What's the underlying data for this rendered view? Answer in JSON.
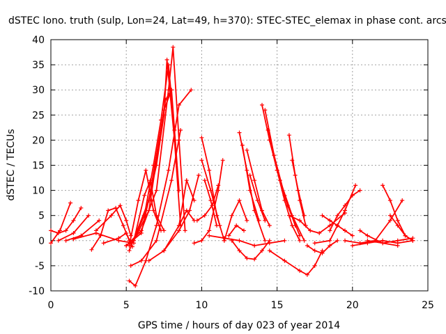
{
  "chart_data": {
    "type": "scatter",
    "title": "dSTEC Iono. truth (sulp, Lon=24, Lat=49, h=370): STEC-STEC_elemax in phase cont. arcs",
    "xlabel": "GPS time / hours of day 023 of year 2014",
    "ylabel": "dSTEC  / TECUs",
    "xlim": [
      0,
      25
    ],
    "ylim": [
      -10,
      40
    ],
    "xticks": [
      "0",
      "5",
      "10",
      "15",
      "20",
      "25"
    ],
    "yticks": [
      "-10",
      "-5",
      "0",
      "5",
      "10",
      "15",
      "20",
      "25",
      "30",
      "35",
      "40"
    ],
    "grid": true,
    "marker": "plus",
    "color": "#ff0000",
    "series": [
      {
        "x": [
          0,
          0.6,
          1.3
        ],
        "y": [
          -0.5,
          2,
          7.5
        ]
      },
      {
        "x": [
          0,
          0.5,
          1.0,
          1.5,
          2.0
        ],
        "y": [
          2,
          1.5,
          2,
          4,
          6.5
        ]
      },
      {
        "x": [
          0.5,
          1.5,
          2.5
        ],
        "y": [
          0,
          1.5,
          5
        ]
      },
      {
        "x": [
          1.0,
          2.0,
          3.2
        ],
        "y": [
          0,
          1,
          4
        ]
      },
      {
        "x": [
          2.7,
          3.3,
          3.8,
          4.3,
          4.8,
          5.2
        ],
        "y": [
          -1.8,
          1,
          6,
          6.5,
          3,
          0
        ]
      },
      {
        "x": [
          3.0,
          4.0,
          4.6,
          5.0,
          5.3
        ],
        "y": [
          2,
          5,
          7,
          4,
          1
        ]
      },
      {
        "x": [
          1.5,
          3.0,
          4.5,
          5.5
        ],
        "y": [
          0.3,
          1.5,
          0,
          -0.5
        ]
      },
      {
        "x": [
          3.5,
          4.5,
          5.0,
          5.4
        ],
        "y": [
          -0.5,
          0.5,
          1.5,
          -1.2
        ]
      },
      {
        "x": [
          5.0,
          6.0,
          7.0,
          7.8,
          8.1,
          8.5,
          8.9
        ],
        "y": [
          -1,
          2,
          10,
          30,
          38.5,
          20,
          2
        ]
      },
      {
        "x": [
          5.0,
          6.0,
          7.0,
          7.5,
          7.7,
          8.2,
          8.6
        ],
        "y": [
          -1,
          1.5,
          15,
          25,
          36,
          20,
          3
        ]
      },
      {
        "x": [
          5.2,
          6.5,
          7.5,
          8.0,
          8.5
        ],
        "y": [
          -2,
          8,
          26,
          30,
          10
        ]
      },
      {
        "x": [
          5.3,
          6.2,
          6.8,
          7.3,
          7.8,
          8.2
        ],
        "y": [
          -1,
          5,
          15,
          24,
          35,
          22
        ]
      },
      {
        "x": [
          5.5,
          6.5,
          7.2,
          7.6,
          8.0
        ],
        "y": [
          0,
          6,
          20,
          28,
          30
        ]
      },
      {
        "x": [
          5.2,
          5.8,
          6.3,
          6.8,
          7.3
        ],
        "y": [
          -1,
          8,
          14,
          6,
          2
        ]
      },
      {
        "x": [
          5.5,
          6.2,
          6.6,
          7.0,
          7.5
        ],
        "y": [
          0,
          9,
          12,
          5,
          2
        ]
      },
      {
        "x": [
          5.2,
          5.6,
          6.3,
          7.0,
          7.8,
          8.5,
          9.3
        ],
        "y": [
          -8,
          -9,
          -4,
          3,
          14,
          27,
          30
        ]
      },
      {
        "x": [
          5.3,
          6.0,
          7.0,
          8.0,
          8.6
        ],
        "y": [
          -5,
          -4,
          0,
          12,
          22
        ]
      },
      {
        "x": [
          6.5,
          7.5,
          8.5,
          9.0,
          9.5
        ],
        "y": [
          -4,
          -2,
          3,
          12,
          8
        ]
      },
      {
        "x": [
          7.5,
          8.5,
          9.2,
          9.8
        ],
        "y": [
          -2,
          2,
          6,
          13
        ]
      },
      {
        "x": [
          8.5,
          9.0,
          9.5
        ],
        "y": [
          3,
          6,
          4
        ]
      },
      {
        "x": [
          10.0,
          10.5,
          11.0,
          11.5
        ],
        "y": [
          20.5,
          14,
          5,
          0
        ]
      },
      {
        "x": [
          10.0,
          10.6,
          11.2
        ],
        "y": [
          16,
          10,
          3
        ]
      },
      {
        "x": [
          10.2,
          10.6,
          11.0
        ],
        "y": [
          12,
          8,
          3
        ]
      },
      {
        "x": [
          9.5,
          10.0,
          10.5,
          11.1,
          11.4
        ],
        "y": [
          -0.5,
          0,
          2,
          10,
          16
        ]
      },
      {
        "x": [
          9.7,
          10.2,
          10.7,
          11.1
        ],
        "y": [
          4,
          5,
          7,
          11
        ]
      },
      {
        "x": [
          12.5,
          13.0,
          13.5,
          14.2
        ],
        "y": [
          21.5,
          14,
          6,
          0
        ]
      },
      {
        "x": [
          12.7,
          13.2,
          13.8
        ],
        "y": [
          19,
          10,
          4
        ]
      },
      {
        "x": [
          13.0,
          13.5,
          14.0,
          14.5
        ],
        "y": [
          18,
          12,
          6,
          3
        ]
      },
      {
        "x": [
          11.5,
          12.0,
          12.5,
          13.0
        ],
        "y": [
          0,
          5,
          8,
          4
        ]
      },
      {
        "x": [
          11.8,
          12.3,
          12.8
        ],
        "y": [
          1,
          3,
          2
        ]
      },
      {
        "x": [
          13.2,
          13.7,
          14.2
        ],
        "y": [
          13,
          8,
          4
        ]
      },
      {
        "x": [
          14.0,
          14.5,
          15.0,
          15.5,
          16.0,
          16.5
        ],
        "y": [
          27,
          20,
          14,
          8,
          3,
          0
        ]
      },
      {
        "x": [
          14.2,
          14.8,
          15.5,
          16.2
        ],
        "y": [
          26,
          17,
          9,
          3
        ]
      },
      {
        "x": [
          14.4,
          15.0,
          15.7,
          16.5
        ],
        "y": [
          22,
          14,
          7,
          1
        ]
      },
      {
        "x": [
          14.5,
          15.2,
          16.0,
          16.8
        ],
        "y": [
          20,
          12,
          5,
          0
        ]
      },
      {
        "x": [
          15.8,
          16.2,
          16.5,
          16.9
        ],
        "y": [
          21,
          13,
          8,
          3
        ]
      },
      {
        "x": [
          16.0,
          16.4,
          16.8
        ],
        "y": [
          16,
          10,
          5
        ]
      },
      {
        "x": [
          15.8,
          16.5,
          17.2,
          17.8,
          18.5,
          19.5
        ],
        "y": [
          5,
          4,
          2,
          1.5,
          3,
          5.5
        ]
      },
      {
        "x": [
          10.5,
          11.5,
          12.5,
          13.5,
          14.5,
          15.5
        ],
        "y": [
          1,
          0.5,
          0,
          -1,
          -0.5,
          0
        ]
      },
      {
        "x": [
          12.0,
          12.5,
          13.0,
          13.5,
          14.0,
          14.5
        ],
        "y": [
          0,
          -2,
          -3.5,
          -3.7,
          -2,
          0
        ]
      },
      {
        "x": [
          14.5,
          15.5,
          16.5,
          17.0,
          17.5,
          18.0
        ],
        "y": [
          -2,
          -4,
          -6,
          -6.8,
          -5,
          -2
        ]
      },
      {
        "x": [
          17.0,
          17.5,
          18.0,
          18.5,
          19.0
        ],
        "y": [
          -1,
          -2,
          -2.5,
          -1,
          0
        ]
      },
      {
        "x": [
          17.5,
          18.5,
          19.0,
          19.5,
          20.2
        ],
        "y": [
          -0.5,
          0,
          3,
          6,
          11
        ]
      },
      {
        "x": [
          18.5,
          19.0,
          19.5,
          20.0,
          20.5
        ],
        "y": [
          2,
          5,
          7,
          9,
          10
        ]
      },
      {
        "x": [
          18.0,
          18.5,
          19.0,
          19.5,
          20.0
        ],
        "y": [
          5,
          4,
          3,
          2,
          1
        ]
      },
      {
        "x": [
          19.5,
          20.5,
          21.5,
          22.5,
          23.3
        ],
        "y": [
          0,
          -0.5,
          0,
          4,
          8
        ]
      },
      {
        "x": [
          20.5,
          21.0,
          22.0,
          23.0
        ],
        "y": [
          2,
          1,
          -0.5,
          -1
        ]
      },
      {
        "x": [
          22.0,
          22.5,
          23.0,
          23.5,
          24.0
        ],
        "y": [
          11,
          8,
          4,
          1,
          0
        ]
      },
      {
        "x": [
          21.0,
          22.0,
          23.0,
          24.0
        ],
        "y": [
          0,
          -0.5,
          0,
          0.5
        ]
      },
      {
        "x": [
          22.5,
          23.0,
          23.5,
          24.0
        ],
        "y": [
          5,
          3,
          1,
          0
        ]
      },
      {
        "x": [
          20.0,
          21.0,
          22.0,
          23.0,
          24.0
        ],
        "y": [
          -1,
          -0.5,
          0,
          -0.5,
          0
        ]
      }
    ]
  }
}
